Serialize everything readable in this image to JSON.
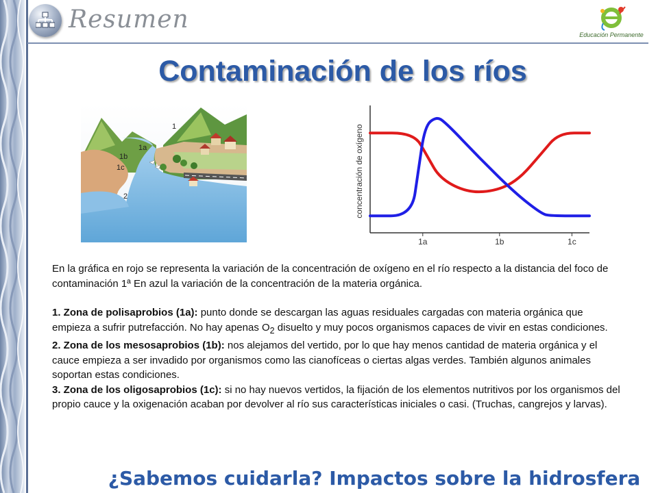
{
  "header": {
    "section_title": "Resumen",
    "logo_icon": "educacion-permanente-logo-icon",
    "logo_text": "Educación Permanente",
    "badge_icon": "sitemap-icon"
  },
  "title": "Contaminación de los ríos",
  "illustration": {
    "labels": [
      "1",
      "1a",
      "1b",
      "1c",
      "2"
    ]
  },
  "chart_data": {
    "type": "line",
    "ylabel": "concentración de oxígeno",
    "xlabel": "",
    "x_ticks": [
      "1a",
      "1b",
      "1c"
    ],
    "series": [
      {
        "color": "#e01b1b",
        "points": [
          [
            0.0,
            0.82
          ],
          [
            0.2,
            0.82
          ],
          [
            0.26,
            0.62
          ],
          [
            0.32,
            0.42
          ],
          [
            0.45,
            0.3
          ],
          [
            0.58,
            0.32
          ],
          [
            0.68,
            0.42
          ],
          [
            0.78,
            0.64
          ],
          [
            0.86,
            0.82
          ],
          [
            1.0,
            0.82
          ]
        ]
      },
      {
        "color": "#1f1fe6",
        "points": [
          [
            0.0,
            0.1
          ],
          [
            0.19,
            0.1
          ],
          [
            0.22,
            0.5
          ],
          [
            0.25,
            0.88
          ],
          [
            0.3,
            0.96
          ],
          [
            0.34,
            0.92
          ],
          [
            0.5,
            0.6
          ],
          [
            0.66,
            0.3
          ],
          [
            0.78,
            0.12
          ],
          [
            0.82,
            0.1
          ],
          [
            1.0,
            0.1
          ]
        ]
      }
    ]
  },
  "body": {
    "intro": "En la gráfica en rojo se representa la variación de la concentración de oxígeno en el río respecto a la distancia del foco de contaminación 1ª En azul la variación de la concentración de la materia orgánica.",
    "zones": [
      {
        "heading": "1. Zona de polisaprobios (1a):",
        "text_before": " punto donde se descargan las aguas residuales cargadas con materia orgánica que empieza a sufrir putrefacción. No hay apenas O",
        "subscript": "2",
        "text_after": " disuelto y muy pocos organismos capaces de vivir en estas condiciones."
      },
      {
        "heading": "2. Zona de los mesosaprobios (1b):",
        "text": " nos alejamos del vertido, por lo que hay menos cantidad de materia orgánica y el cauce empieza a ser invadido por organismos como las cianofíceas o ciertas algas verdes. También algunos animales soportan estas condiciones."
      },
      {
        "heading": "3. Zona de los oligosaprobios (1c):",
        "text": " si no hay nuevos vertidos, la fijación de los elementos nutritivos por los organismos del propio cauce y la oxigenación acaban por devolver al río sus características iniciales o casi. (Truchas, cangrejos y larvas)."
      }
    ]
  },
  "footer": "¿Sabemos cuidarla? Impactos sobre la hidrosfera"
}
